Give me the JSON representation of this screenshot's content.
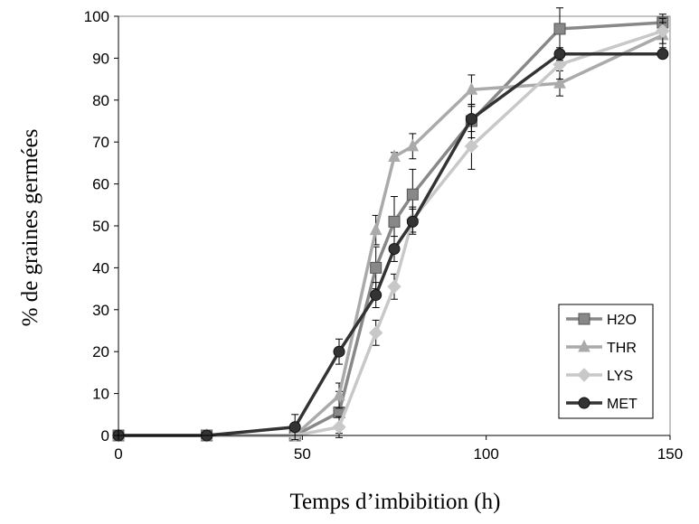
{
  "chart_data": {
    "type": "line",
    "title": "",
    "xlabel": "Temps d’imbibition (h)",
    "ylabel": "% de  graines germées",
    "xlim": [
      0,
      150
    ],
    "ylim": [
      0,
      100
    ],
    "xticks": [
      0,
      50,
      100,
      150
    ],
    "yticks": [
      0,
      10,
      20,
      30,
      40,
      50,
      60,
      70,
      80,
      90,
      100
    ],
    "grid": false,
    "legend_position": "bottom-right",
    "series": [
      {
        "name": "H2O",
        "color": "#888888",
        "marker": "square",
        "x": [
          0,
          24,
          48,
          60,
          70,
          75,
          80,
          96,
          120,
          148
        ],
        "y": [
          0,
          0,
          0,
          5.5,
          40,
          51,
          57.5,
          75,
          97,
          98.5
        ],
        "err": [
          0,
          0,
          0,
          5,
          5,
          6,
          6,
          4,
          5,
          2
        ]
      },
      {
        "name": "THR",
        "color": "#aaaaaa",
        "marker": "triangle",
        "x": [
          0,
          24,
          48,
          60,
          70,
          75,
          80,
          96,
          120,
          148
        ],
        "y": [
          0,
          0,
          0,
          9.5,
          49,
          66.5,
          69,
          82.5,
          84,
          95.5
        ],
        "err": [
          0,
          0,
          0,
          3,
          3.5,
          1,
          3,
          3.5,
          3,
          3
        ]
      },
      {
        "name": "LYS",
        "color": "#c8c8c8",
        "marker": "diamond",
        "x": [
          0,
          24,
          48,
          60,
          70,
          75,
          80,
          96,
          120,
          148
        ],
        "y": [
          0,
          0,
          0,
          2,
          24.5,
          35.5,
          51.5,
          69,
          88.5,
          96.5
        ],
        "err": [
          0,
          0,
          0,
          2.5,
          3,
          3,
          3,
          5.5,
          3.5,
          3
        ]
      },
      {
        "name": "MET",
        "color": "#333333",
        "marker": "circle",
        "x": [
          0,
          24,
          48,
          60,
          70,
          75,
          80,
          96,
          120,
          148
        ],
        "y": [
          0,
          0,
          2,
          20,
          33.5,
          44.5,
          51,
          75.5,
          91,
          91
        ],
        "err": [
          0,
          0,
          3,
          3,
          3,
          3,
          3,
          3,
          1.5,
          0
        ]
      }
    ]
  }
}
